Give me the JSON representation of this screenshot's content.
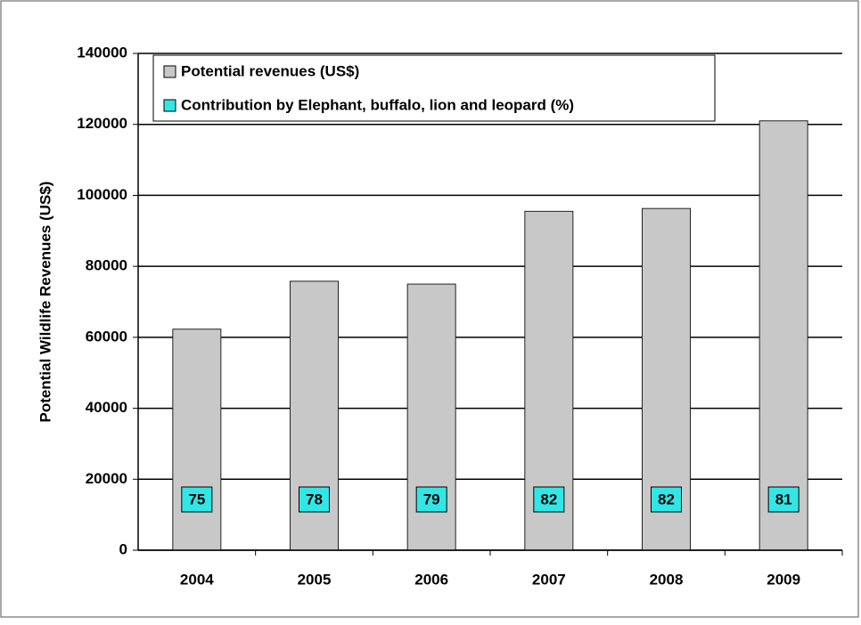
{
  "chart_data": {
    "type": "bar",
    "y_label": "Potential Wildlife Revenues (US$)",
    "categories": [
      "2004",
      "2005",
      "2006",
      "2007",
      "2008",
      "2009"
    ],
    "series": [
      {
        "name": "Potential revenues (US$)",
        "color": "#c8c8c8",
        "values": [
          62300,
          75800,
          75000,
          95500,
          96300,
          121000
        ]
      },
      {
        "name": "Contribution by Elephant, buffalo, lion and leopard (%)",
        "color": "#33e6e6",
        "values": [
          75,
          78,
          79,
          82,
          82,
          81
        ]
      }
    ],
    "ylim": [
      0,
      140000
    ],
    "yticks": [
      0,
      20000,
      40000,
      60000,
      80000,
      100000,
      120000,
      140000
    ],
    "grid": true
  }
}
